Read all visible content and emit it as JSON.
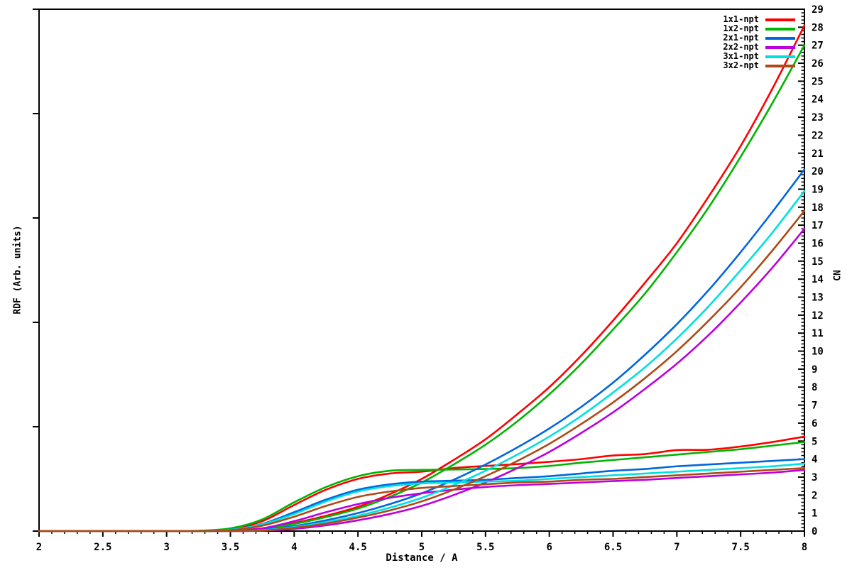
{
  "chart_data": {
    "type": "line",
    "xlabel": "Distance / A",
    "ylabel_left": "RDF (Arb. units)",
    "ylabel_right": "CN",
    "grid": false,
    "background": "#ffffff",
    "axis_color": "#000000",
    "legend_position": "top-right-inside",
    "x_axis": {
      "min": 2,
      "max": 8,
      "major_step": 0.5,
      "minors_per_major": 4,
      "tick_labels": [
        "2",
        "2.5",
        "3",
        "3.5",
        "4",
        "4.5",
        "5",
        "5.5",
        "6",
        "6.5",
        "7",
        "7.5",
        "8"
      ]
    },
    "y_right_axis": {
      "min": 0,
      "max": 29,
      "major_step": 1,
      "minors_per_major": 4,
      "tick_labels": [
        "0",
        "1",
        "2",
        "3",
        "4",
        "5",
        "6",
        "7",
        "8",
        "9",
        "10",
        "11",
        "12",
        "13",
        "14",
        "15",
        "16",
        "17",
        "18",
        "19",
        "20",
        "21",
        "22",
        "23",
        "24",
        "25",
        "26",
        "27",
        "28",
        "29"
      ]
    },
    "y_left_axis": {
      "labeled": false,
      "major_divisions": 5,
      "note": "RDF axis has tick marks but no numeric labels (arbitrary units)"
    },
    "units_note": "Each dataset draws two curves: a plateauing RDF running-average (left axis, arbitrary units, values listed on the right-axis display scale) and a steeply rising CN integral (right axis).",
    "x": [
      2,
      2.5,
      3,
      3.25,
      3.5,
      3.75,
      4,
      4.25,
      4.5,
      4.75,
      5,
      5.25,
      5.5,
      5.75,
      6,
      6.25,
      6.5,
      6.75,
      7,
      7.25,
      7.5,
      7.75,
      8
    ],
    "series": [
      {
        "name": "1x1-npt",
        "color": "#ff0000",
        "rdf": [
          0,
          0,
          0,
          0.01,
          0.12,
          0.55,
          1.45,
          2.3,
          2.9,
          3.2,
          3.3,
          3.5,
          3.62,
          3.72,
          3.85,
          4.0,
          4.2,
          4.28,
          4.5,
          4.52,
          4.7,
          4.95,
          5.25
        ],
        "cn": [
          0,
          0,
          0,
          0,
          0.02,
          0.15,
          0.45,
          0.85,
          1.35,
          2.05,
          2.9,
          3.95,
          5.1,
          6.5,
          8.0,
          9.75,
          11.7,
          13.8,
          16.0,
          18.6,
          21.4,
          24.6,
          28.1
        ]
      },
      {
        "name": "1x2-npt",
        "color": "#00b400",
        "rdf": [
          0,
          0,
          0,
          0.02,
          0.15,
          0.65,
          1.6,
          2.45,
          3.05,
          3.35,
          3.4,
          3.42,
          3.45,
          3.5,
          3.62,
          3.8,
          3.95,
          4.1,
          4.25,
          4.4,
          4.55,
          4.75,
          4.95
        ],
        "cn": [
          0,
          0,
          0,
          0,
          0.02,
          0.13,
          0.4,
          0.78,
          1.25,
          1.9,
          2.7,
          3.7,
          4.8,
          6.1,
          7.6,
          9.3,
          11.2,
          13.2,
          15.5,
          18.0,
          20.8,
          23.8,
          27.0
        ]
      },
      {
        "name": "2x1-npt",
        "color": "#0066dd",
        "rdf": [
          0,
          0,
          0,
          0,
          0.08,
          0.4,
          1.05,
          1.75,
          2.3,
          2.6,
          2.75,
          2.8,
          2.85,
          2.95,
          3.05,
          3.2,
          3.35,
          3.45,
          3.6,
          3.7,
          3.8,
          3.9,
          4.0
        ],
        "cn": [
          0,
          0,
          0,
          0,
          0,
          0.08,
          0.28,
          0.6,
          1.0,
          1.5,
          2.1,
          2.85,
          3.7,
          4.65,
          5.7,
          6.9,
          8.25,
          9.8,
          11.5,
          13.4,
          15.5,
          17.75,
          20.1
        ]
      },
      {
        "name": "2x2-npt",
        "color": "#bb00dd",
        "rdf": [
          0,
          0,
          0,
          0,
          0.02,
          0.15,
          0.55,
          1.05,
          1.5,
          1.85,
          2.1,
          2.3,
          2.45,
          2.55,
          2.62,
          2.7,
          2.78,
          2.85,
          2.95,
          3.05,
          3.15,
          3.25,
          3.4
        ],
        "cn": [
          0,
          0,
          0,
          0,
          0,
          0.02,
          0.12,
          0.32,
          0.6,
          0.95,
          1.4,
          2.0,
          2.7,
          3.5,
          4.4,
          5.45,
          6.6,
          7.9,
          9.3,
          10.9,
          12.7,
          14.65,
          16.8
        ]
      },
      {
        "name": "3x1-npt",
        "color": "#00e0e0",
        "rdf": [
          0,
          0,
          0,
          0,
          0.07,
          0.37,
          0.95,
          1.65,
          2.2,
          2.5,
          2.65,
          2.7,
          2.75,
          2.8,
          2.9,
          3.0,
          3.1,
          3.2,
          3.3,
          3.4,
          3.5,
          3.6,
          3.75
        ],
        "cn": [
          0,
          0,
          0,
          0,
          0,
          0.05,
          0.22,
          0.5,
          0.85,
          1.3,
          1.85,
          2.55,
          3.35,
          4.25,
          5.25,
          6.4,
          7.7,
          9.1,
          10.7,
          12.5,
          14.5,
          16.6,
          18.9
        ]
      },
      {
        "name": "3x2-npt",
        "color": "#ad4a15",
        "rdf": [
          0,
          0,
          0,
          0,
          0.05,
          0.3,
          0.8,
          1.4,
          1.9,
          2.2,
          2.4,
          2.5,
          2.6,
          2.7,
          2.75,
          2.85,
          2.9,
          3.0,
          3.1,
          3.2,
          3.3,
          3.4,
          3.5
        ],
        "cn": [
          0,
          0,
          0,
          0,
          0,
          0.03,
          0.18,
          0.42,
          0.75,
          1.15,
          1.65,
          2.3,
          3.05,
          3.9,
          4.85,
          5.95,
          7.15,
          8.5,
          10.0,
          11.7,
          13.55,
          15.6,
          17.8
        ]
      }
    ]
  }
}
